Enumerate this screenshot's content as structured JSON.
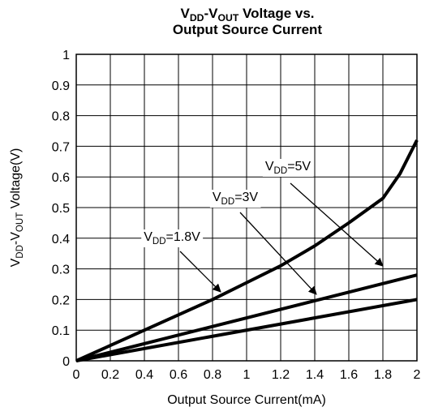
{
  "chart_data": {
    "type": "line",
    "title": [
      [
        {
          "text": "V",
          "sub": false
        },
        {
          "text": "DD",
          "sub": true
        },
        {
          "text": "-V",
          "sub": false
        },
        {
          "text": "OUT",
          "sub": true
        },
        {
          "text": " Voltage vs.",
          "sub": false
        }
      ],
      [
        {
          "text": "Output Source Current",
          "sub": false
        }
      ]
    ],
    "xlabel": "Output Source Current(mA)",
    "ylabel": [
      {
        "text": "V",
        "sub": false
      },
      {
        "text": "DD",
        "sub": true
      },
      {
        "text": "-V",
        "sub": false
      },
      {
        "text": "OUT",
        "sub": true
      },
      {
        "text": " Voltage(V)",
        "sub": false
      }
    ],
    "xlim": [
      0,
      2
    ],
    "ylim": [
      0,
      1
    ],
    "xticks": [
      0,
      0.2,
      0.4,
      0.6,
      0.8,
      1,
      1.2,
      1.4,
      1.6,
      1.8,
      2
    ],
    "yticks": [
      0,
      0.1,
      0.2,
      0.3,
      0.4,
      0.5,
      0.6,
      0.7,
      0.8,
      0.9,
      1
    ],
    "grid": true,
    "series": [
      {
        "color": "#000000",
        "x": [
          0,
          0.2,
          0.4,
          0.6,
          0.8,
          1.0,
          1.2,
          1.4,
          1.6,
          1.8,
          1.9,
          2.0
        ],
        "values": [
          0,
          0.05,
          0.1,
          0.15,
          0.2,
          0.255,
          0.31,
          0.375,
          0.45,
          0.53,
          0.61,
          0.72
        ]
      },
      {
        "color": "#000000",
        "x": [
          0,
          2
        ],
        "values": [
          0,
          0.28
        ]
      },
      {
        "color": "#000000",
        "x": [
          0,
          2
        ],
        "values": [
          0,
          0.2
        ]
      }
    ],
    "annotations": [
      [
        {
          "text": "V",
          "sub": false
        },
        {
          "text": "DD",
          "sub": true
        },
        {
          "text": "=1.8V",
          "sub": false
        }
      ],
      [
        {
          "text": "V",
          "sub": false
        },
        {
          "text": "DD",
          "sub": true
        },
        {
          "text": "=3V",
          "sub": false
        }
      ],
      [
        {
          "text": "V",
          "sub": false
        },
        {
          "text": "DD",
          "sub": true
        },
        {
          "text": "=5V",
          "sub": false
        }
      ]
    ]
  }
}
